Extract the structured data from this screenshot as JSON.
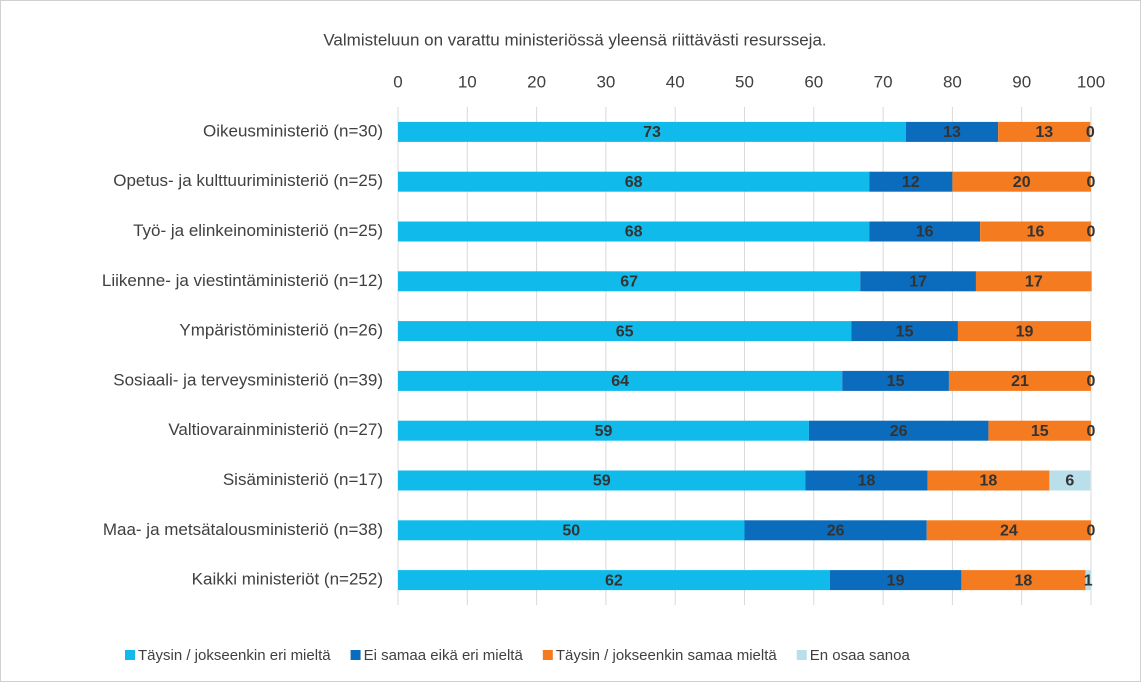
{
  "chart_data": {
    "type": "stacked-bar-horizontal",
    "title": "Valmisteluun on varattu ministeriössä yleensä riittävästi resursseja.",
    "categories": [
      "Oikeusministeriö (n=30)",
      "Opetus- ja kulttuuriministeriö (n=25)",
      "Työ- ja elinkeinoministeriö (n=25)",
      "Liikenne- ja viestintäministeriö (n=12)",
      "Ympäristöministeriö (n=26)",
      "Sosiaali- ja terveysministeriö (n=39)",
      "Valtiovarainministeriö (n=27)",
      "Sisäministeriö (n=17)",
      "Maa- ja metsätalousministeriö (n=38)",
      "Kaikki ministeriöt (n=252)"
    ],
    "series": [
      {
        "name": "Täysin / jokseenkin eri mieltä",
        "color": "#10bbeb",
        "values": [
          73.3,
          68,
          68,
          66.7,
          65.4,
          64.1,
          59.3,
          58.8,
          50,
          62.3
        ],
        "value_labels": [
          "73",
          "68",
          "68",
          "67",
          "65",
          "64",
          "59",
          "59",
          "50",
          "62"
        ]
      },
      {
        "name": "Ei samaa eikä eri mieltä",
        "color": "#0b6cbd",
        "values": [
          13.3,
          12,
          16,
          16.7,
          15.4,
          15.4,
          25.9,
          17.6,
          26.3,
          19.0
        ],
        "value_labels": [
          "13",
          "12",
          "16",
          "17",
          "15",
          "15",
          "26",
          "18",
          "26",
          "19"
        ]
      },
      {
        "name": "Täysin / jokseenkin samaa mieltä",
        "color": "#f57b20",
        "values": [
          13.3,
          20,
          16,
          16.7,
          19.2,
          20.5,
          14.8,
          17.6,
          23.7,
          17.9
        ],
        "value_labels": [
          "13",
          "20",
          "16",
          "17",
          "19",
          "21",
          "15",
          "18",
          "24",
          "18"
        ]
      },
      {
        "name": "En osaa sanoa",
        "color": "#b9dfea",
        "values": [
          0,
          0,
          0,
          null,
          null,
          0,
          0,
          5.9,
          0,
          0.8
        ],
        "value_labels": [
          "0",
          "0",
          "0",
          null,
          null,
          "0",
          "0",
          "6",
          "0",
          "1"
        ]
      }
    ],
    "xlim": [
      0,
      100
    ],
    "xticks": [
      0,
      10,
      20,
      30,
      40,
      50,
      60,
      70,
      80,
      90,
      100
    ],
    "grid": true
  }
}
